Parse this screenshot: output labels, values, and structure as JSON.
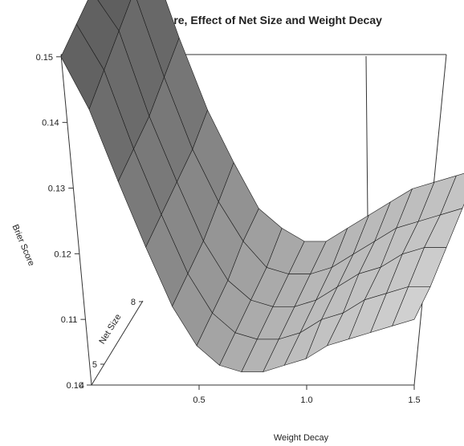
{
  "chart_data": {
    "type": "surface3d",
    "title": "Brier Score, Effect of Net Size and Weight Decay",
    "xlabel": "Weight Decay",
    "ylabel": "Net Size",
    "zlabel": "Brier Score",
    "x_ticks": [
      "0.5",
      "1.0",
      "1.5"
    ],
    "y_ticks": [
      "4",
      "5",
      "8"
    ],
    "z_ticks": [
      "0.10",
      "0.11",
      "0.12",
      "0.13",
      "0.14",
      "0.15"
    ],
    "xlim": [
      0.0,
      1.5
    ],
    "ylim": [
      4,
      8
    ],
    "zlim": [
      0.1,
      0.15
    ],
    "weight_decay": [
      0.0,
      0.1,
      0.2,
      0.3,
      0.4,
      0.5,
      0.6,
      0.7,
      0.8,
      0.9,
      1.0,
      1.1,
      1.2,
      1.3,
      1.4,
      1.5
    ],
    "net_size": [
      4,
      5,
      6,
      7,
      8
    ],
    "brier_score": [
      [
        0.15,
        0.142,
        0.131,
        0.121,
        0.112,
        0.106,
        0.103,
        0.102,
        0.102,
        0.103,
        0.104,
        0.106,
        0.107,
        0.108,
        0.109,
        0.11
      ],
      [
        0.151,
        0.144,
        0.132,
        0.122,
        0.113,
        0.107,
        0.104,
        0.103,
        0.103,
        0.104,
        0.106,
        0.107,
        0.109,
        0.11,
        0.111,
        0.111
      ],
      [
        0.152,
        0.146,
        0.133,
        0.123,
        0.114,
        0.108,
        0.105,
        0.104,
        0.104,
        0.105,
        0.107,
        0.109,
        0.11,
        0.112,
        0.113,
        0.113
      ],
      [
        0.154,
        0.148,
        0.135,
        0.124,
        0.116,
        0.11,
        0.106,
        0.105,
        0.105,
        0.106,
        0.108,
        0.11,
        0.112,
        0.113,
        0.114,
        0.115
      ],
      [
        0.156,
        0.15,
        0.137,
        0.126,
        0.118,
        0.111,
        0.108,
        0.106,
        0.106,
        0.108,
        0.11,
        0.112,
        0.114,
        0.115,
        0.116,
        0.117
      ]
    ],
    "grid": false,
    "legend": "none",
    "colors": {
      "surface_high": "#555555",
      "surface_low": "#e8e8e8",
      "edge": "#1a1a1a"
    }
  }
}
